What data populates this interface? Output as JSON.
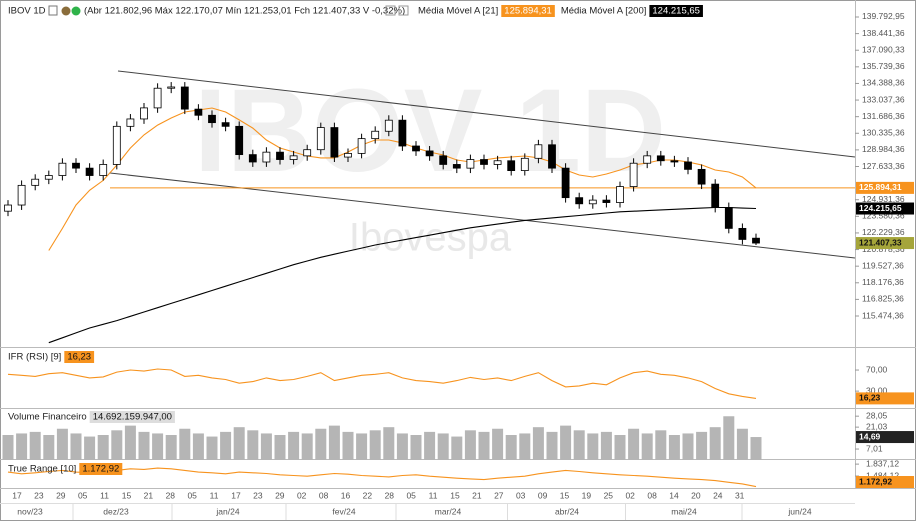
{
  "chart_data": {
    "type": "candlestick",
    "title": "IBOV 1D",
    "ohlc_text": "(Abr 121.802,96 Máx 122.170,07 Mín 121.253,01 Fch 121.407,33 V -0,32%)",
    "watermark": "IBOV 1D",
    "watermark_subtitle": "Ibovespa",
    "open": [
      124000,
      124500,
      126100,
      126600,
      126900,
      127900,
      127500,
      126900,
      127800,
      130900,
      131500,
      132400,
      134000,
      134100,
      132300,
      131800,
      131200,
      130900,
      128600,
      128000,
      128800,
      128200,
      128500,
      129000,
      130800,
      128400,
      128700,
      129900,
      130500,
      131400,
      129300,
      128900,
      128500,
      127800,
      127500,
      128200,
      127800,
      128100,
      127300,
      128300,
      129400,
      127500,
      125100,
      124600,
      124900,
      124700,
      126000,
      127900,
      128500,
      128100,
      128000,
      127400,
      126200,
      124300,
      122600,
      121802.96
    ],
    "high": [
      124900,
      126500,
      127000,
      127300,
      128300,
      128300,
      127900,
      128200,
      131300,
      131900,
      132800,
      134400,
      134500,
      134500,
      132700,
      132200,
      131600,
      131300,
      129000,
      129200,
      129200,
      128900,
      129400,
      131200,
      131200,
      129100,
      130300,
      130900,
      131800,
      131800,
      129700,
      129300,
      128900,
      128200,
      128600,
      128600,
      128500,
      128500,
      128700,
      129800,
      129800,
      127900,
      125500,
      125300,
      125300,
      126400,
      128300,
      128900,
      128900,
      128500,
      128400,
      127800,
      126600,
      124700,
      123000,
      122170.07
    ],
    "low": [
      123600,
      124100,
      125700,
      126200,
      126500,
      127100,
      126500,
      126500,
      127400,
      130500,
      131100,
      132000,
      133600,
      131900,
      131400,
      130800,
      130500,
      128200,
      127600,
      127600,
      127800,
      127800,
      128100,
      128600,
      128000,
      128000,
      128300,
      129500,
      130100,
      128900,
      128500,
      128100,
      127400,
      127100,
      127100,
      127400,
      127400,
      126900,
      126900,
      127900,
      127100,
      124700,
      124200,
      124200,
      124300,
      124300,
      125600,
      127500,
      127700,
      127600,
      127000,
      125800,
      123900,
      122200,
      121300,
      121253.01
    ],
    "close": [
      124500,
      126100,
      126600,
      126900,
      127900,
      127500,
      126900,
      127800,
      130900,
      131500,
      132400,
      134000,
      134100,
      132300,
      131800,
      131200,
      130900,
      128600,
      128000,
      128800,
      128200,
      128500,
      129000,
      130800,
      128400,
      128700,
      129900,
      130500,
      131400,
      129300,
      128900,
      128500,
      127800,
      127500,
      128200,
      127800,
      128100,
      127300,
      128300,
      129400,
      127500,
      125100,
      124600,
      124900,
      124700,
      126000,
      127900,
      128500,
      128100,
      128000,
      127400,
      126200,
      124300,
      122600,
      121700,
      121407.33
    ],
    "up_color": "#ffffff",
    "down_color": "#000000",
    "last_price_label": "121.407,33",
    "last_price_color": "#a5a53a",
    "overlays": [
      {
        "name": "Média Móvel A [21]",
        "value_label": "125.894,31",
        "color": "#f7931e",
        "values": [
          null,
          null,
          null,
          120800,
          122600,
          124500,
          125700,
          126500,
          127750,
          129140,
          130200,
          131000,
          131580,
          132070,
          132230,
          132390,
          132070,
          131420,
          130760,
          129790,
          129140,
          128810,
          128490,
          128330,
          128330,
          128810,
          129380,
          129790,
          129790,
          129550,
          129140,
          128810,
          128570,
          128160,
          128000,
          128160,
          128330,
          128410,
          128490,
          128330,
          128000,
          127350,
          126940,
          126780,
          127020,
          127350,
          127760,
          127920,
          128160,
          128160,
          128000,
          127760,
          127350,
          127190,
          126780,
          125894.31
        ]
      },
      {
        "name": "Média Móvel A [200]",
        "value_label": "124.215,65",
        "color": "#000000",
        "values": [
          null,
          null,
          null,
          113300,
          113700,
          114100,
          114500,
          114800,
          115100,
          115450,
          115800,
          116150,
          116500,
          116850,
          117200,
          117550,
          117900,
          118250,
          118600,
          118950,
          119300,
          119650,
          119950,
          120250,
          120500,
          120750,
          121000,
          121250,
          121450,
          121650,
          121850,
          122050,
          122250,
          122450,
          122650,
          122800,
          122950,
          123100,
          123250,
          123350,
          123450,
          123550,
          123650,
          123750,
          123850,
          123950,
          124000,
          124050,
          124100,
          124150,
          124200,
          124250,
          124300,
          124300,
          124250,
          124215.65
        ]
      }
    ],
    "ylim": [
      113116,
      140931
    ],
    "yticks": [
      {
        "value": 139792.95,
        "label": "139.792,95"
      },
      {
        "value": 138441.36,
        "label": "138.441,36"
      },
      {
        "value": 137090.33,
        "label": "137.090,33"
      },
      {
        "value": 135739.36,
        "label": "135.739,36"
      },
      {
        "value": 134388.36,
        "label": "134.388,36"
      },
      {
        "value": 133037.36,
        "label": "133.037,36"
      },
      {
        "value": 131686.36,
        "label": "131.686,36"
      },
      {
        "value": 130335.36,
        "label": "130.335,36"
      },
      {
        "value": 128984.36,
        "label": "128.984,36"
      },
      {
        "value": 127633.36,
        "label": "127.633,36"
      },
      {
        "value": 124931.36,
        "label": "124.931,36"
      },
      {
        "value": 123580.36,
        "label": "123.580,36"
      },
      {
        "value": 122229.36,
        "label": "122.229,36"
      },
      {
        "value": 120878.36,
        "label": "120.878,36"
      },
      {
        "value": 119527.36,
        "label": "119.527,36"
      },
      {
        "value": 118176.36,
        "label": "118.176,36"
      },
      {
        "value": 116825.36,
        "label": "116.825,36"
      },
      {
        "value": 115474.36,
        "label": "115.474,36"
      }
    ],
    "x_axis": {
      "date_labels": [
        "17",
        "23",
        "29",
        "05",
        "11",
        "15",
        "21",
        "28",
        "05",
        "11",
        "17",
        "23",
        "29",
        "02",
        "08",
        "16",
        "22",
        "28",
        "05",
        "11",
        "15",
        "21",
        "27",
        "03",
        "09",
        "15",
        "19",
        "25",
        "02",
        "08",
        "14",
        "20",
        "24",
        "31"
      ],
      "month_labels": [
        "nov/23",
        "dez/23",
        "jan/24",
        "fev/24",
        "mar/24",
        "abr/24",
        "mai/24",
        "jun/24"
      ]
    },
    "panels": [
      {
        "type": "line",
        "name": "IFR (RSI) [9]",
        "value_label": "16,23",
        "color": "#f7931e",
        "values": [
          62,
          60,
          58,
          63,
          65,
          60,
          55,
          57,
          66,
          70,
          68,
          72,
          70,
          58,
          60,
          55,
          52,
          45,
          48,
          55,
          50,
          52,
          58,
          65,
          50,
          55,
          60,
          62,
          65,
          55,
          50,
          48,
          45,
          50,
          56,
          52,
          55,
          50,
          58,
          65,
          50,
          38,
          40,
          45,
          42,
          55,
          65,
          68,
          62,
          60,
          55,
          48,
          35,
          25,
          20,
          16.23
        ],
        "ylim": [
          -2,
          108
        ],
        "yticks": [
          {
            "value": 70,
            "label": "70,00"
          },
          {
            "value": 30,
            "label": "30,00"
          }
        ]
      },
      {
        "type": "bar",
        "name": "Volume Financeiro",
        "header_value": "14.692.159.947,00",
        "value_label": "14,69",
        "color": "#b5b5b5",
        "values": [
          16,
          17,
          18,
          16,
          20,
          17,
          15,
          16,
          19,
          22,
          18,
          17,
          16,
          20,
          17,
          15,
          18,
          21,
          19,
          17,
          16,
          18,
          17,
          20,
          22,
          18,
          17,
          19,
          21,
          17,
          16,
          18,
          17,
          15,
          19,
          18,
          20,
          16,
          17,
          21,
          18,
          22,
          19,
          17,
          18,
          16,
          20,
          17,
          19,
          16,
          17,
          18,
          21,
          28,
          20,
          14.69
        ],
        "ylim": [
          0,
          32
        ],
        "yticks": [
          {
            "value": 28.05,
            "label": "28,05"
          },
          {
            "value": 21.03,
            "label": "21,03"
          },
          {
            "value": 7.01,
            "label": "7,01"
          }
        ]
      },
      {
        "type": "line",
        "name": "True Range [10]",
        "value_label": "1.172,92",
        "color": "#f7931e",
        "values": [
          1600,
          1550,
          1580,
          1620,
          1650,
          1600,
          1580,
          1560,
          1650,
          1700,
          1680,
          1720,
          1700,
          1650,
          1600,
          1580,
          1550,
          1600,
          1580,
          1560,
          1520,
          1500,
          1480,
          1520,
          1560,
          1540,
          1500,
          1480,
          1460,
          1500,
          1520,
          1480,
          1450,
          1420,
          1400,
          1380,
          1420,
          1450,
          1480,
          1550,
          1600,
          1650,
          1620,
          1580,
          1550,
          1520,
          1500,
          1480,
          1450,
          1420,
          1400,
          1380,
          1350,
          1300,
          1250,
          1172.92
        ],
        "ylim": [
          1130,
          1900
        ],
        "yticks": [
          {
            "value": 1837.12,
            "label": "1.837,12"
          },
          {
            "value": 1484.12,
            "label": "1.484,12"
          }
        ]
      }
    ]
  }
}
